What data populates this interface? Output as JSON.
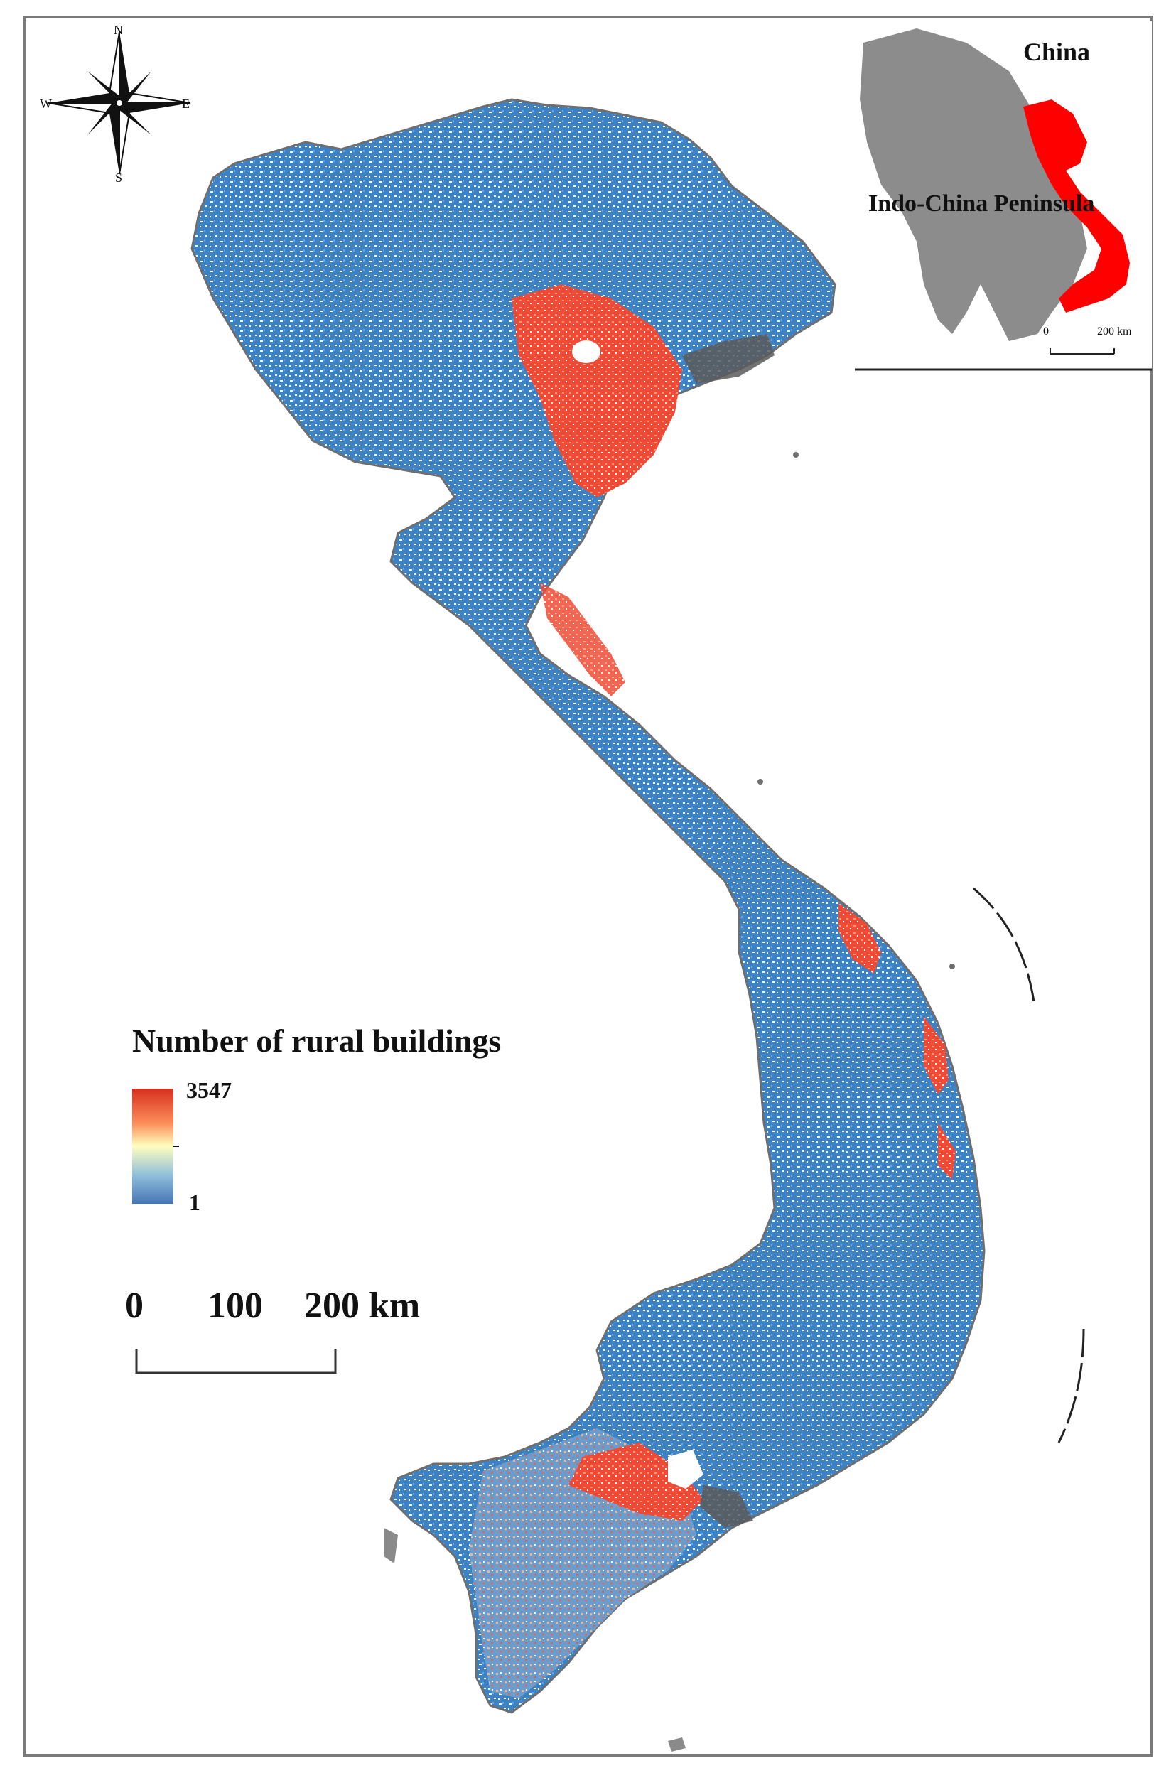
{
  "inset": {
    "label_country": "China",
    "label_region": "Indo-China Peninsula",
    "scale_start": "0",
    "scale_end": "200 km",
    "highlight_color": "#ff0000",
    "land_color": "#8c8c8c"
  },
  "compass": {
    "n": "N",
    "s": "S",
    "e": "E",
    "w": "W"
  },
  "legend": {
    "title": "Number of rural buildings",
    "max": "3547",
    "min": "1",
    "colors": [
      "#d7301f",
      "#fc8d59",
      "#fee08b",
      "#ffffbf",
      "#91bfdb",
      "#4575b4"
    ]
  },
  "scale_bar": {
    "label_0": "0",
    "label_100": "100",
    "label_200": "200 km"
  },
  "map_colors": {
    "low": "#3a7fc1",
    "high": "#ef3b2c",
    "mid": "#f6c79a",
    "outline": "#6e6e6e"
  }
}
